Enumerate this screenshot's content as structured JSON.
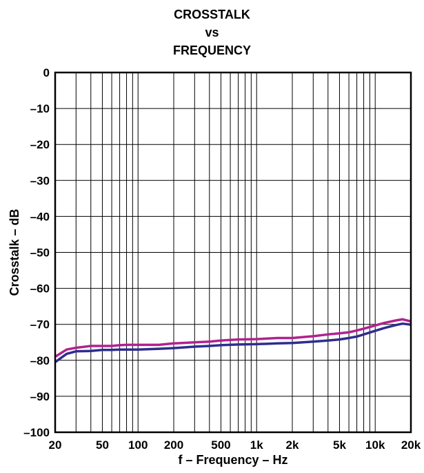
{
  "chart_data": {
    "type": "line",
    "title_lines": [
      "CROSSTALK",
      "vs",
      "FREQUENCY"
    ],
    "xlabel": "f – Frequency – Hz",
    "ylabel": "Crosstalk – dB",
    "xscale": "log",
    "xlim": [
      20,
      20000
    ],
    "ylim": [
      -100,
      0
    ],
    "grid": true,
    "legend": "none",
    "x_ticks": [
      {
        "value": 20,
        "label": "20"
      },
      {
        "value": 50,
        "label": "50"
      },
      {
        "value": 100,
        "label": "100"
      },
      {
        "value": 200,
        "label": "200"
      },
      {
        "value": 500,
        "label": "500"
      },
      {
        "value": 1000,
        "label": "1k"
      },
      {
        "value": 2000,
        "label": "2k"
      },
      {
        "value": 5000,
        "label": "5k"
      },
      {
        "value": 10000,
        "label": "10k"
      },
      {
        "value": 20000,
        "label": "20k"
      }
    ],
    "y_ticks": [
      {
        "value": 0,
        "label": "0"
      },
      {
        "value": -10,
        "label": "–10"
      },
      {
        "value": -20,
        "label": "–20"
      },
      {
        "value": -30,
        "label": "–30"
      },
      {
        "value": -40,
        "label": "–40"
      },
      {
        "value": -50,
        "label": "–50"
      },
      {
        "value": -60,
        "label": "–60"
      },
      {
        "value": -70,
        "label": "–70"
      },
      {
        "value": -80,
        "label": "–80"
      },
      {
        "value": -90,
        "label": "–90"
      },
      {
        "value": -100,
        "label": "–100"
      }
    ],
    "series": [
      {
        "color": "#b0228f",
        "x": [
          20,
          25,
          30,
          40,
          50,
          60,
          70,
          80,
          100,
          150,
          200,
          300,
          400,
          500,
          700,
          1000,
          1500,
          2000,
          3000,
          4000,
          5000,
          6000,
          7000,
          8000,
          10000,
          12000,
          15000,
          17000,
          20000
        ],
        "y": [
          -79.0,
          -77.0,
          -76.5,
          -76.0,
          -76.0,
          -76.0,
          -75.8,
          -75.7,
          -75.7,
          -75.7,
          -75.3,
          -75.0,
          -74.8,
          -74.5,
          -74.2,
          -74.1,
          -73.8,
          -73.8,
          -73.3,
          -72.8,
          -72.5,
          -72.2,
          -71.7,
          -71.2,
          -70.3,
          -69.6,
          -68.9,
          -68.6,
          -69.2
        ]
      },
      {
        "color": "#2d2d8f",
        "x": [
          20,
          25,
          30,
          40,
          50,
          60,
          70,
          80,
          100,
          150,
          200,
          300,
          400,
          500,
          700,
          1000,
          1500,
          2000,
          3000,
          4000,
          5000,
          6000,
          7000,
          8000,
          10000,
          12000,
          15000,
          17000,
          20000
        ],
        "y": [
          -80.5,
          -78.2,
          -77.5,
          -77.4,
          -77.1,
          -77.1,
          -77.0,
          -77.0,
          -77.0,
          -76.8,
          -76.6,
          -76.2,
          -76.0,
          -75.8,
          -75.6,
          -75.5,
          -75.3,
          -75.2,
          -74.8,
          -74.5,
          -74.2,
          -73.8,
          -73.4,
          -72.8,
          -71.8,
          -71.0,
          -70.2,
          -69.8,
          -70.1
        ]
      }
    ]
  }
}
